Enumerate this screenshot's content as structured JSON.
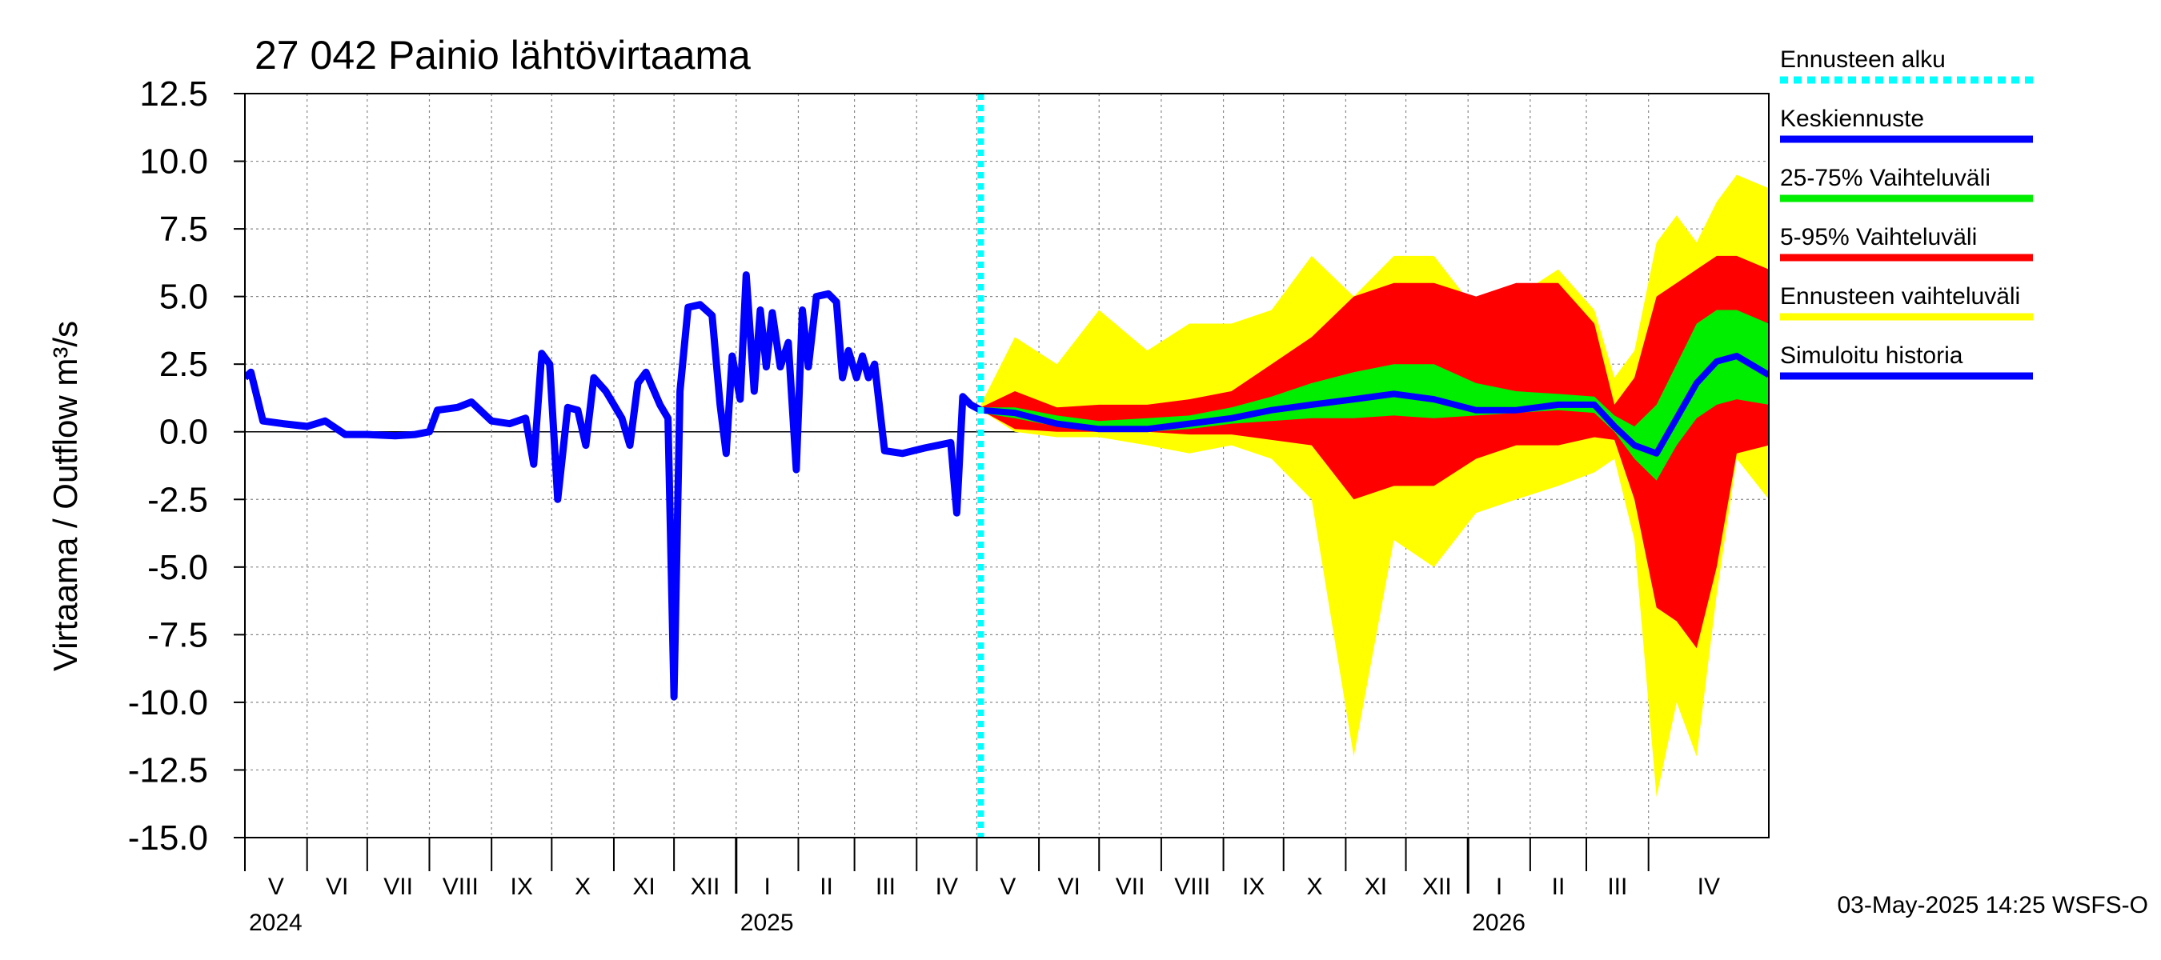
{
  "chart_data": {
    "type": "area",
    "title": "27 042 Painio lähtövirtaama",
    "ylabel": "Virtaama / Outflow    m³/s",
    "ylim": [
      -15.0,
      12.5
    ],
    "y_ticks": [
      "12.5",
      "10.0",
      "7.5",
      "5.0",
      "2.5",
      "0.0",
      "-2.5",
      "-5.0",
      "-7.5",
      "-10.0",
      "-12.5",
      "-15.0"
    ],
    "x_range": [
      "2024-05-01",
      "2026-05-31"
    ],
    "forecast_start": "2025-05-03",
    "months": [
      {
        "label": "V",
        "start": "2024-05-01"
      },
      {
        "label": "VI",
        "start": "2024-06-01"
      },
      {
        "label": "VII",
        "start": "2024-07-01"
      },
      {
        "label": "VIII",
        "start": "2024-08-01"
      },
      {
        "label": "IX",
        "start": "2024-09-01"
      },
      {
        "label": "X",
        "start": "2024-10-01"
      },
      {
        "label": "XI",
        "start": "2024-11-01"
      },
      {
        "label": "XII",
        "start": "2024-12-01"
      },
      {
        "label": "I",
        "start": "2025-01-01"
      },
      {
        "label": "II",
        "start": "2025-02-01"
      },
      {
        "label": "III",
        "start": "2025-03-01"
      },
      {
        "label": "IV",
        "start": "2025-04-01"
      },
      {
        "label": "V",
        "start": "2025-05-01"
      },
      {
        "label": "VI",
        "start": "2025-06-01"
      },
      {
        "label": "VII",
        "start": "2025-07-01"
      },
      {
        "label": "VIII",
        "start": "2025-08-01"
      },
      {
        "label": "IX",
        "start": "2025-09-01"
      },
      {
        "label": "X",
        "start": "2025-10-01"
      },
      {
        "label": "XI",
        "start": "2025-11-01"
      },
      {
        "label": "XII",
        "start": "2025-12-01"
      },
      {
        "label": "I",
        "start": "2026-01-01"
      },
      {
        "label": "II",
        "start": "2026-02-01"
      },
      {
        "label": "III",
        "start": "2026-03-01"
      },
      {
        "label": "IV",
        "start": "2026-04-01"
      }
    ],
    "years": [
      {
        "label": "2024",
        "date": "2024-05-01"
      },
      {
        "label": "2025",
        "date": "2025-01-01"
      },
      {
        "label": "2026",
        "date": "2026-01-01"
      }
    ],
    "history": {
      "name": "Simuloitu historia",
      "points": [
        [
          "2024-05-01",
          2.0
        ],
        [
          "2024-05-04",
          2.2
        ],
        [
          "2024-05-10",
          0.4
        ],
        [
          "2024-05-20",
          0.3
        ],
        [
          "2024-06-01",
          0.2
        ],
        [
          "2024-06-10",
          0.4
        ],
        [
          "2024-06-20",
          -0.1
        ],
        [
          "2024-07-01",
          -0.1
        ],
        [
          "2024-07-15",
          -0.15
        ],
        [
          "2024-07-25",
          -0.1
        ],
        [
          "2024-08-01",
          0.0
        ],
        [
          "2024-08-05",
          0.8
        ],
        [
          "2024-08-15",
          0.9
        ],
        [
          "2024-08-22",
          1.1
        ],
        [
          "2024-09-01",
          0.4
        ],
        [
          "2024-09-10",
          0.3
        ],
        [
          "2024-09-18",
          0.5
        ],
        [
          "2024-09-22",
          -1.2
        ],
        [
          "2024-09-26",
          2.9
        ],
        [
          "2024-09-30",
          2.5
        ],
        [
          "2024-10-04",
          -2.5
        ],
        [
          "2024-10-09",
          0.9
        ],
        [
          "2024-10-14",
          0.8
        ],
        [
          "2024-10-18",
          -0.5
        ],
        [
          "2024-10-22",
          2.0
        ],
        [
          "2024-10-28",
          1.5
        ],
        [
          "2024-11-05",
          0.5
        ],
        [
          "2024-11-09",
          -0.5
        ],
        [
          "2024-11-13",
          1.8
        ],
        [
          "2024-11-17",
          2.2
        ],
        [
          "2024-11-24",
          1.0
        ],
        [
          "2024-11-28",
          0.5
        ],
        [
          "2024-12-01",
          -9.8
        ],
        [
          "2024-12-04",
          1.5
        ],
        [
          "2024-12-08",
          4.6
        ],
        [
          "2024-12-14",
          4.7
        ],
        [
          "2024-12-20",
          4.3
        ],
        [
          "2024-12-24",
          1.0
        ],
        [
          "2024-12-27",
          -0.8
        ],
        [
          "2024-12-30",
          2.8
        ],
        [
          "2025-01-03",
          1.2
        ],
        [
          "2025-01-06",
          5.8
        ],
        [
          "2025-01-10",
          1.5
        ],
        [
          "2025-01-13",
          4.5
        ],
        [
          "2025-01-16",
          2.4
        ],
        [
          "2025-01-19",
          4.4
        ],
        [
          "2025-01-23",
          2.4
        ],
        [
          "2025-01-27",
          3.3
        ],
        [
          "2025-01-31",
          -1.4
        ],
        [
          "2025-02-03",
          4.5
        ],
        [
          "2025-02-06",
          2.4
        ],
        [
          "2025-02-10",
          5.0
        ],
        [
          "2025-02-16",
          5.1
        ],
        [
          "2025-02-20",
          4.8
        ],
        [
          "2025-02-23",
          2.0
        ],
        [
          "2025-02-26",
          3.0
        ],
        [
          "2025-03-02",
          2.0
        ],
        [
          "2025-03-05",
          2.8
        ],
        [
          "2025-03-08",
          2.0
        ],
        [
          "2025-03-11",
          2.5
        ],
        [
          "2025-03-16",
          -0.7
        ],
        [
          "2025-03-25",
          -0.8
        ],
        [
          "2025-04-05",
          -0.6
        ],
        [
          "2025-04-18",
          -0.4
        ],
        [
          "2025-04-21",
          -3.0
        ],
        [
          "2025-04-24",
          1.3
        ],
        [
          "2025-04-28",
          1.0
        ],
        [
          "2025-05-03",
          0.8
        ]
      ]
    },
    "forecast_dates": [
      "2025-05-03",
      "2025-05-20",
      "2025-06-10",
      "2025-07-01",
      "2025-07-25",
      "2025-08-15",
      "2025-09-05",
      "2025-09-25",
      "2025-10-15",
      "2025-11-05",
      "2025-11-25",
      "2025-12-15",
      "2026-01-05",
      "2026-01-25",
      "2026-02-15",
      "2026-03-05",
      "2026-03-15",
      "2026-03-25",
      "2026-04-05",
      "2026-04-15",
      "2026-04-25",
      "2026-05-05",
      "2026-05-15",
      "2026-05-31"
    ],
    "series": [
      {
        "name": "Ennusteen vaihteluväli",
        "color": "#ffff00",
        "upper": [
          1.0,
          3.5,
          2.5,
          4.5,
          3.0,
          4.0,
          4.0,
          4.5,
          6.5,
          5.0,
          6.5,
          6.5,
          4.5,
          5.0,
          6.0,
          4.5,
          2.0,
          3.0,
          7.0,
          8.0,
          7.0,
          8.5,
          9.5,
          9.0
        ],
        "lower": [
          0.8,
          0.0,
          -0.2,
          -0.2,
          -0.5,
          -0.8,
          -0.5,
          -1.0,
          -2.5,
          -12.0,
          -4.0,
          -5.0,
          -3.0,
          -2.5,
          -2.0,
          -1.5,
          -1.0,
          -4.0,
          -13.5,
          -10.0,
          -12.0,
          -6.0,
          -1.0,
          -2.5
        ]
      },
      {
        "name": "5-95% Vaihteluväli",
        "color": "#ff0000",
        "upper": [
          0.9,
          1.5,
          0.9,
          1.0,
          1.0,
          1.2,
          1.5,
          2.5,
          3.5,
          5.0,
          5.5,
          5.5,
          5.0,
          5.5,
          5.5,
          4.0,
          1.0,
          2.0,
          5.0,
          5.5,
          6.0,
          6.5,
          6.5,
          6.0
        ],
        "lower": [
          0.8,
          0.1,
          0.0,
          0.0,
          0.0,
          -0.1,
          -0.1,
          -0.3,
          -0.5,
          -2.5,
          -2.0,
          -2.0,
          -1.0,
          -0.5,
          -0.5,
          -0.2,
          -0.3,
          -2.5,
          -6.5,
          -7.0,
          -8.0,
          -5.0,
          -0.8,
          -0.5
        ]
      },
      {
        "name": "25-75% Vaihteluväli",
        "color": "#00ee00",
        "upper": [
          0.9,
          0.9,
          0.6,
          0.4,
          0.5,
          0.6,
          0.9,
          1.3,
          1.8,
          2.2,
          2.5,
          2.5,
          1.8,
          1.5,
          1.4,
          1.3,
          0.6,
          0.2,
          1.0,
          2.5,
          4.0,
          4.5,
          4.5,
          4.0
        ],
        "lower": [
          0.7,
          0.5,
          0.2,
          0.0,
          0.0,
          0.1,
          0.3,
          0.4,
          0.5,
          0.5,
          0.6,
          0.5,
          0.6,
          0.7,
          0.8,
          0.7,
          0.0,
          -1.0,
          -1.8,
          -0.5,
          0.5,
          1.0,
          1.2,
          1.0
        ]
      },
      {
        "name": "Keskiennuste",
        "color": "#0000ff",
        "values": [
          0.8,
          0.7,
          0.3,
          0.1,
          0.1,
          0.3,
          0.5,
          0.8,
          1.0,
          1.2,
          1.4,
          1.2,
          0.8,
          0.8,
          1.0,
          1.0,
          0.2,
          -0.5,
          -0.8,
          0.5,
          1.8,
          2.6,
          2.8,
          2.1
        ]
      }
    ],
    "legend_position": "right",
    "legend": [
      {
        "label": "Ennusteen alku",
        "color": "#00ffff",
        "style": "dotted"
      },
      {
        "label": "Keskiennuste",
        "color": "#0000ff",
        "style": "solid"
      },
      {
        "label": "25-75% Vaihteluväli",
        "color": "#00ee00",
        "style": "solid"
      },
      {
        "label": "5-95% Vaihteluväli",
        "color": "#ff0000",
        "style": "solid"
      },
      {
        "label": "Ennusteen vaihteluväli",
        "color": "#ffff00",
        "style": "solid"
      },
      {
        "label": "Simuloitu historia",
        "color": "#0000ff",
        "style": "solid"
      }
    ],
    "grid": true
  },
  "footer": {
    "timestamp": "03-May-2025 14:25 WSFS-O"
  }
}
